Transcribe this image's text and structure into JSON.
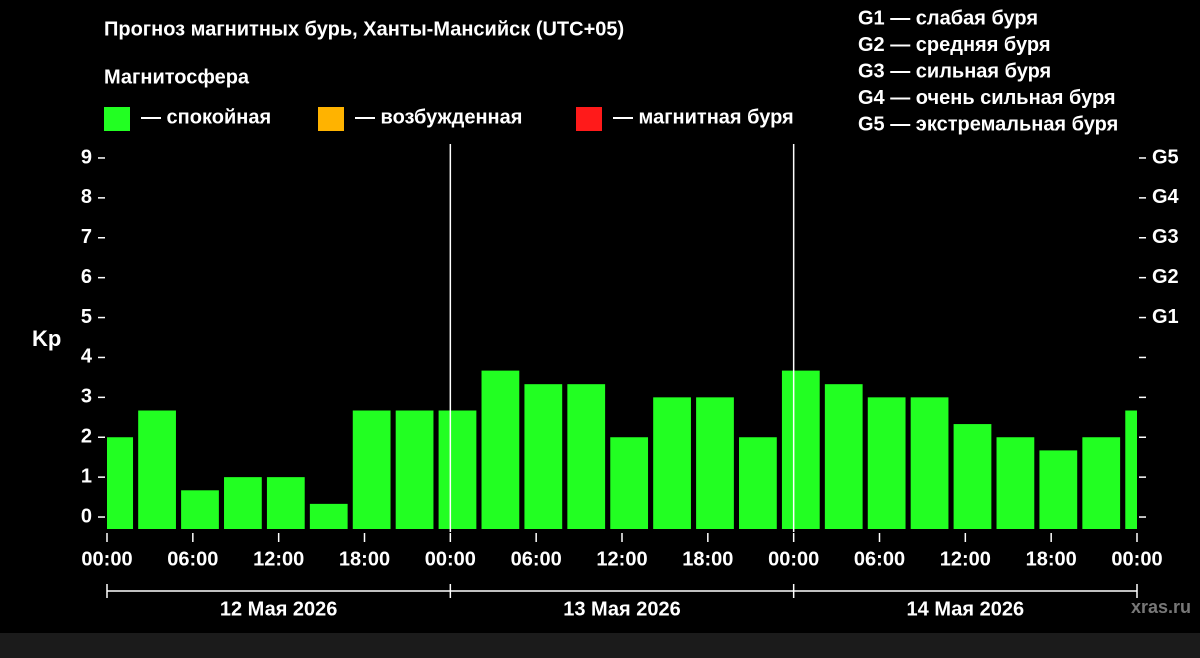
{
  "chart_data": {
    "type": "bar",
    "title": "Прогноз магнитных бурь, Ханты-Мансийск (UTC+05)",
    "legend_title": "Магнитосфера",
    "legend": [
      {
        "name": "— спокойная",
        "color": "#22ff22"
      },
      {
        "name": "— возбужденная",
        "color": "#ffb300"
      },
      {
        "name": "— магнитная буря",
        "color": "#ff1a1a"
      }
    ],
    "g_scale": [
      "G1 — слабая буря",
      "G2 — средняя буря",
      "G3 — сильная буря",
      "G4 — очень сильная буря",
      "G5 — экстремальная буря"
    ],
    "ylabel": "Kp",
    "x": [
      0.5,
      3.5,
      6.5,
      9.5,
      12.5,
      15.5,
      18.5,
      21.5,
      24.5,
      27.5,
      30.5,
      33.5,
      36.5,
      39.5,
      42.5,
      45.5,
      48.5,
      51.5,
      54.5,
      57.5,
      60.5,
      63.5,
      66.5,
      69.5,
      72.5
    ],
    "values": [
      2.0,
      2.67,
      0.67,
      1.0,
      1.0,
      0.33,
      2.67,
      2.67,
      2.67,
      3.67,
      3.33,
      3.33,
      2.0,
      3.0,
      3.0,
      2.0,
      3.67,
      3.33,
      3.0,
      3.0,
      2.33,
      2.0,
      1.67,
      2.0,
      2.67
    ],
    "color": "#22ff22",
    "xlim": [
      0,
      72
    ],
    "xticks": [
      {
        "value": 0,
        "label": "00:00"
      },
      {
        "value": 6,
        "label": "06:00"
      },
      {
        "value": 12,
        "label": "12:00"
      },
      {
        "value": 18,
        "label": "18:00"
      },
      {
        "value": 24,
        "label": "00:00"
      },
      {
        "value": 30,
        "label": "06:00"
      },
      {
        "value": 36,
        "label": "12:00"
      },
      {
        "value": 42,
        "label": "18:00"
      },
      {
        "value": 48,
        "label": "00:00"
      },
      {
        "value": 54,
        "label": "06:00"
      },
      {
        "value": 60,
        "label": "12:00"
      },
      {
        "value": 66,
        "label": "18:00"
      },
      {
        "value": 72,
        "label": "00:00"
      }
    ],
    "dates": [
      "12 Мая 2026",
      "13 Мая 2026",
      "14 Мая 2026"
    ],
    "ylim": [
      -0.3,
      9.3
    ],
    "yticks": [
      0,
      1,
      2,
      3,
      4,
      5,
      6,
      7,
      8,
      9
    ],
    "y2ticks": [
      {
        "value": 5,
        "label": "G1"
      },
      {
        "value": 6,
        "label": "G2"
      },
      {
        "value": 7,
        "label": "G3"
      },
      {
        "value": 8,
        "label": "G4"
      },
      {
        "value": 9,
        "label": "G5"
      }
    ],
    "watermark": "xras.ru"
  }
}
